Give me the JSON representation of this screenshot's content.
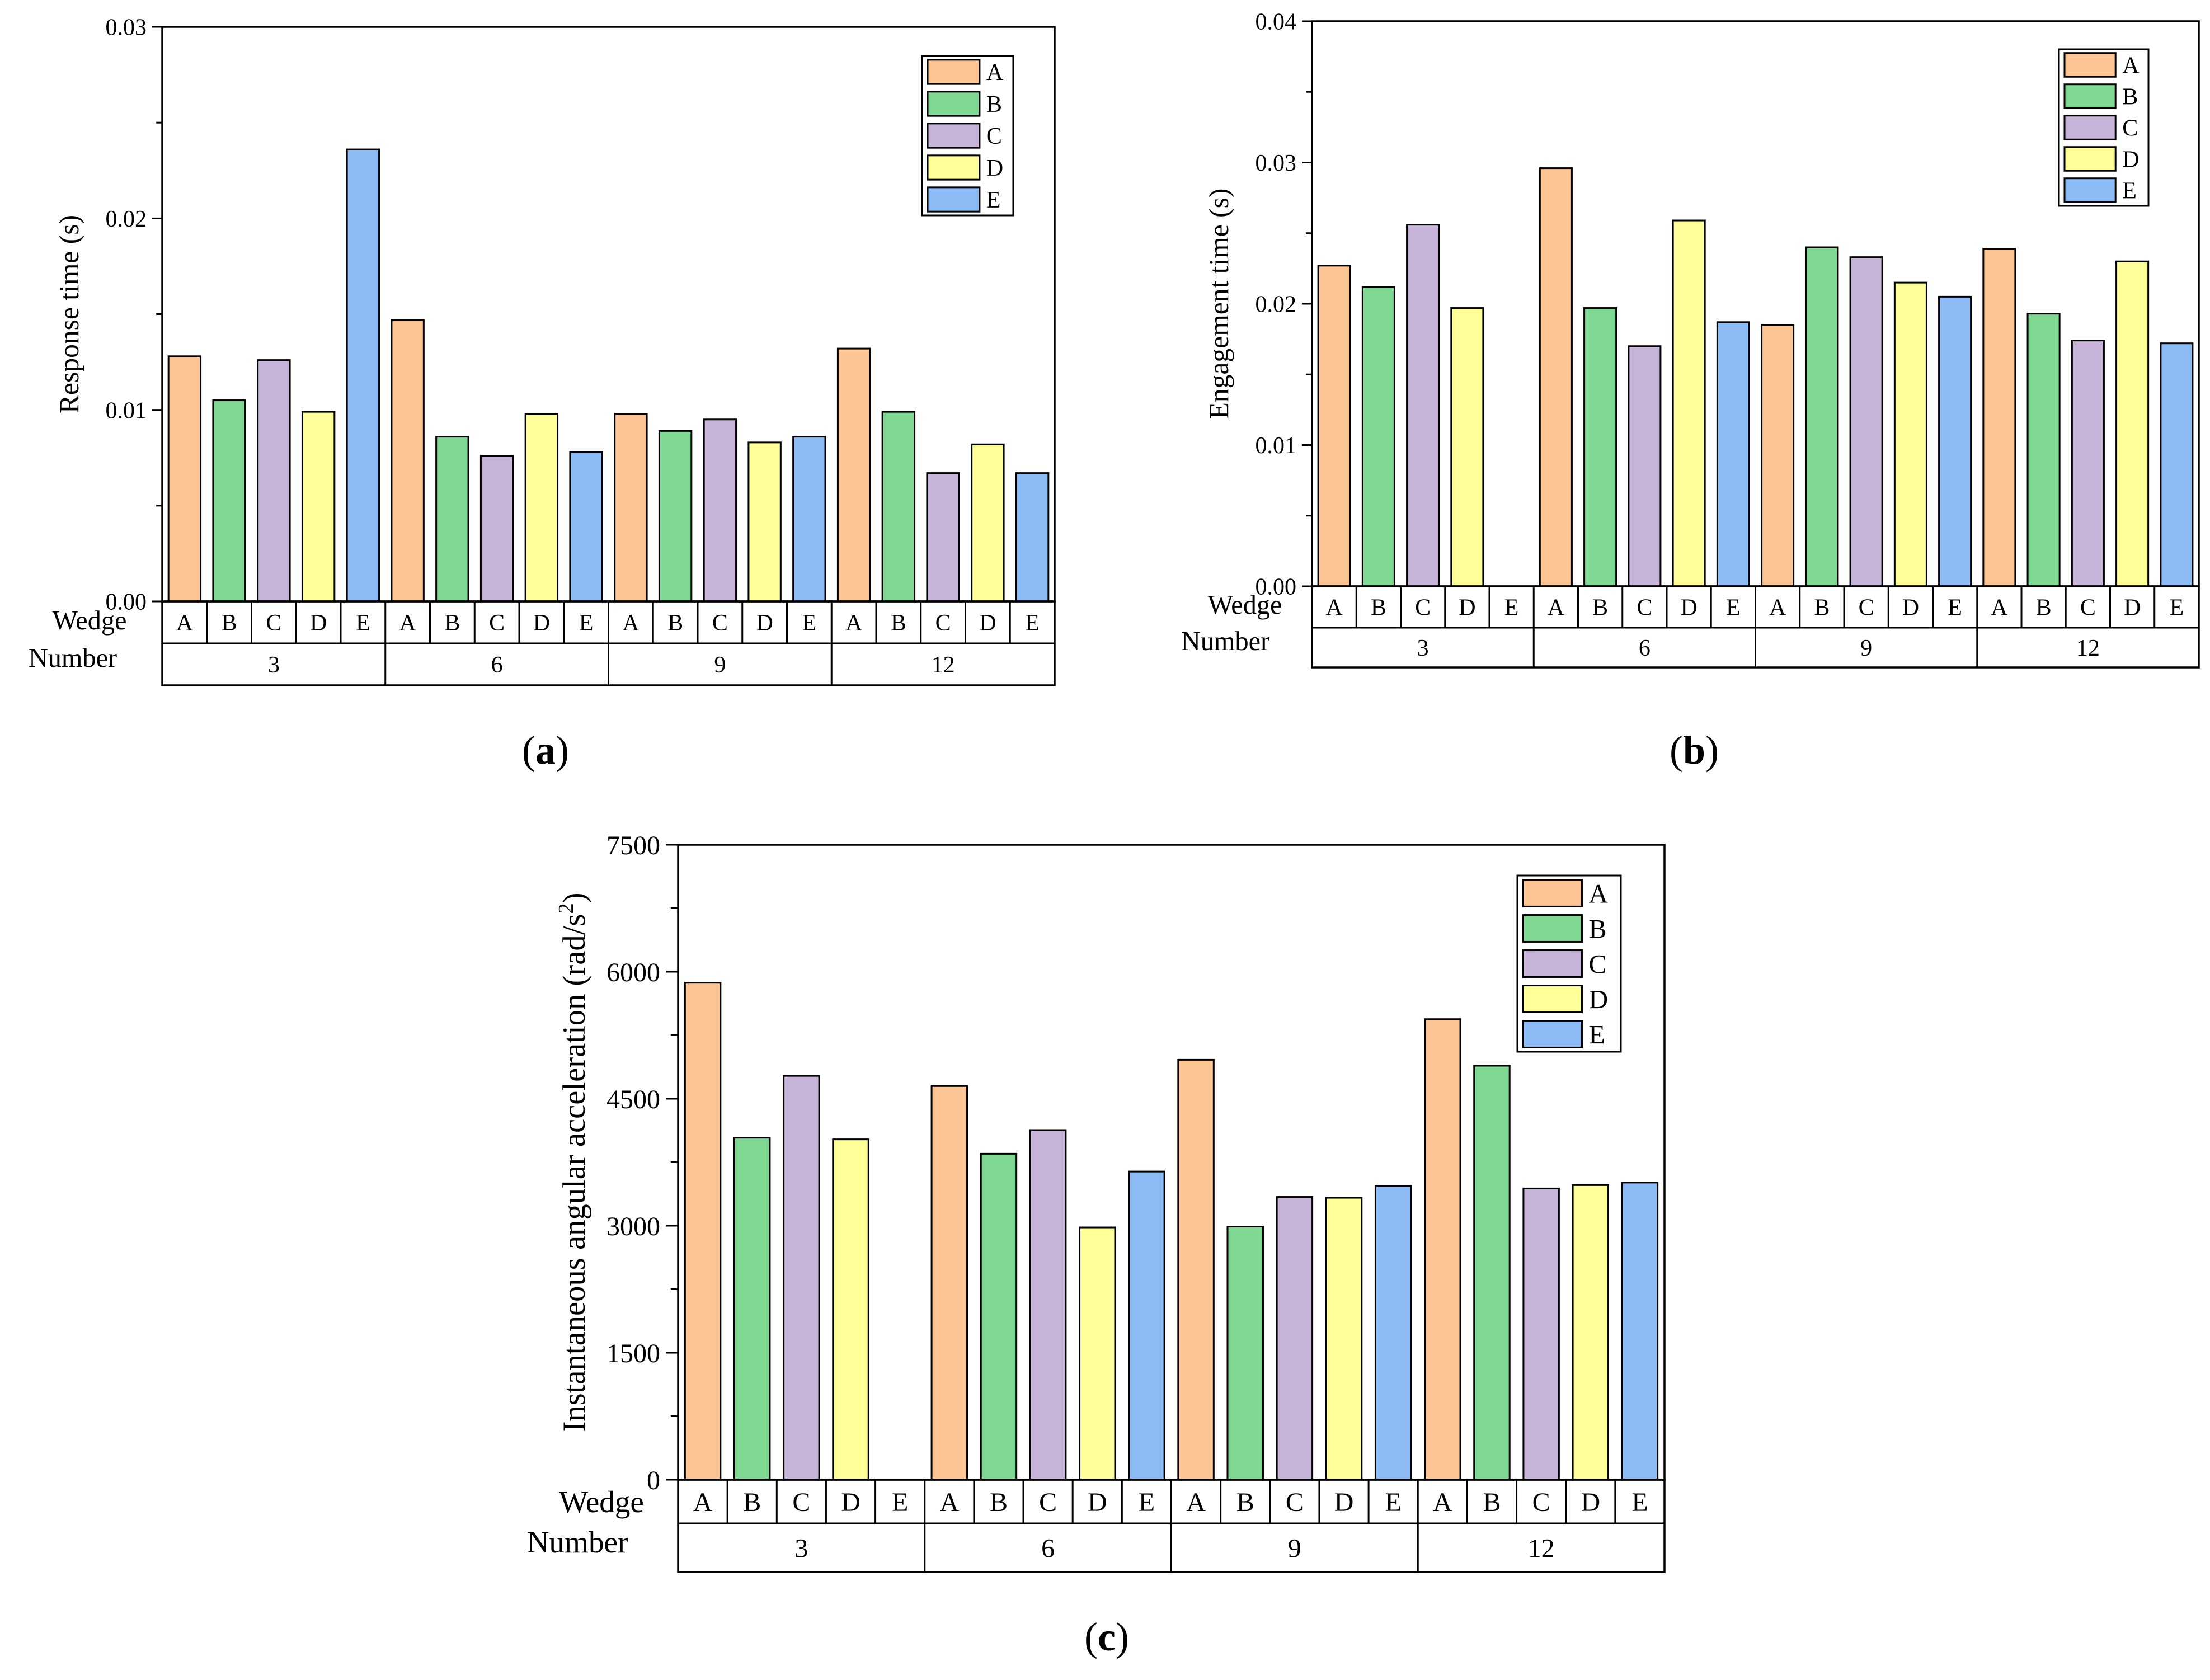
{
  "chart_data": [
    {
      "type": "bar",
      "panel": "a",
      "ylabel": "Response time (s)",
      "ylim": [
        0,
        0.03
      ],
      "yticks": [
        "0.00",
        "0.01",
        "0.02",
        "0.03"
      ],
      "ytick_values": [
        0,
        0.01,
        0.02,
        0.03
      ],
      "xlabel_lines": [
        "Wedge",
        "Number"
      ],
      "groups": [
        "3",
        "6",
        "9",
        "12"
      ],
      "series_names": [
        "A",
        "B",
        "C",
        "D",
        "E"
      ],
      "values": [
        [
          0.0128,
          0.0105,
          0.0126,
          0.0099,
          0.0236
        ],
        [
          0.0147,
          0.0086,
          0.0076,
          0.0098,
          0.0078
        ],
        [
          0.0098,
          0.0089,
          0.0095,
          0.0083,
          0.0086
        ],
        [
          0.0132,
          0.0099,
          0.0067,
          0.0082,
          0.0067
        ]
      ],
      "legend_position": "top-right"
    },
    {
      "type": "bar",
      "panel": "b",
      "ylabel": "Engagement time (s)",
      "ylim": [
        0,
        0.04
      ],
      "yticks": [
        "0.00",
        "0.01",
        "0.02",
        "0.03",
        "0.04"
      ],
      "ytick_values": [
        0,
        0.01,
        0.02,
        0.03,
        0.04
      ],
      "xlabel_lines": [
        "Wedge",
        "Number"
      ],
      "groups": [
        "3",
        "6",
        "9",
        "12"
      ],
      "series_names": [
        "A",
        "B",
        "C",
        "D",
        "E"
      ],
      "values": [
        [
          0.0227,
          0.0212,
          0.0256,
          0.0197,
          null
        ],
        [
          0.0296,
          0.0197,
          0.017,
          0.0259,
          0.0187
        ],
        [
          0.0185,
          0.024,
          0.0233,
          0.0215,
          0.0205
        ],
        [
          0.0239,
          0.0193,
          0.0174,
          0.023,
          0.0172
        ]
      ],
      "legend_position": "top-right"
    },
    {
      "type": "bar",
      "panel": "c",
      "ylabel": "Instantaneous angular acceleration (rad/s",
      "ylabel_sup": "2",
      "ylabel_end": ")",
      "ylim": [
        0,
        7500
      ],
      "yticks": [
        "0",
        "1500",
        "3000",
        "4500",
        "6000",
        "7500"
      ],
      "ytick_values": [
        0,
        1500,
        3000,
        4500,
        6000,
        7500
      ],
      "xlabel_lines": [
        "Wedge",
        "Number"
      ],
      "groups": [
        "3",
        "6",
        "9",
        "12"
      ],
      "series_names": [
        "A",
        "B",
        "C",
        "D",
        "E"
      ],
      "values": [
        [
          5870,
          4040,
          4770,
          4020,
          null
        ],
        [
          4650,
          3850,
          4130,
          2980,
          3640
        ],
        [
          4960,
          2990,
          3340,
          3330,
          3470
        ],
        [
          5440,
          4890,
          3440,
          3480,
          3510
        ]
      ],
      "legend_position": "top-right"
    }
  ],
  "series_colors": [
    "#FDC594",
    "#7FD993",
    "#C8B4D8",
    "#FFFF99",
    "#8DBBF5"
  ],
  "captions": [
    {
      "open": "(",
      "letter": "a",
      "close": ")"
    },
    {
      "open": "(",
      "letter": "b",
      "close": ")"
    },
    {
      "open": "(",
      "letter": "c",
      "close": ")"
    }
  ]
}
